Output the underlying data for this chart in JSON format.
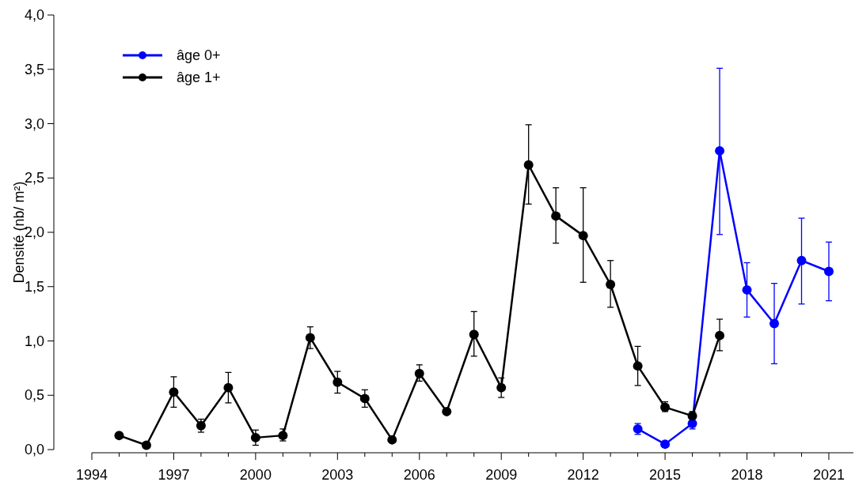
{
  "chart_data": {
    "type": "line",
    "ylabel": "Densité (nb/ m²)",
    "xlim": [
      1994,
      2021.9
    ],
    "ylim": [
      0,
      4
    ],
    "xticks": [
      1994,
      {
        "value": 1995,
        "label": null
      },
      {
        "value": 1996,
        "label": null
      },
      1997,
      {
        "value": 1998,
        "label": null
      },
      {
        "value": 1999,
        "label": null
      },
      2000,
      {
        "value": 2001,
        "label": null
      },
      {
        "value": 2002,
        "label": null
      },
      2003,
      {
        "value": 2004,
        "label": null
      },
      {
        "value": 2005,
        "label": null
      },
      2006,
      {
        "value": 2007,
        "label": null
      },
      {
        "value": 2008,
        "label": null
      },
      2009,
      {
        "value": 2010,
        "label": null
      },
      {
        "value": 2011,
        "label": null
      },
      2012,
      {
        "value": 2013,
        "label": null
      },
      {
        "value": 2014,
        "label": null
      },
      2015,
      {
        "value": 2016,
        "label": null
      },
      {
        "value": 2017,
        "label": null
      },
      2018,
      {
        "value": 2019,
        "label": null
      },
      {
        "value": 2020,
        "label": null
      },
      2021
    ],
    "yticks": [
      {
        "value": 0,
        "label": "0,0"
      },
      {
        "value": 0.5,
        "label": "0,5"
      },
      {
        "value": 1,
        "label": "1,0"
      },
      {
        "value": 1.5,
        "label": "1,5"
      },
      {
        "value": 2,
        "label": "2,0"
      },
      {
        "value": 2.5,
        "label": "2,5"
      },
      {
        "value": 3,
        "label": "3,0"
      },
      {
        "value": 3.5,
        "label": "3,5"
      },
      {
        "value": 4,
        "label": "4,0"
      }
    ],
    "grid": false,
    "legend": "top left",
    "marker": "circle",
    "line_style": "solid",
    "series": [
      {
        "name": "âge 0+",
        "color": "#0000ff",
        "x": [
          2014,
          2015,
          2016,
          2017,
          2018,
          2019,
          2020,
          2021
        ],
        "values": [
          0.19,
          0.05,
          0.24,
          2.75,
          1.47,
          1.16,
          1.74,
          1.64
        ],
        "errors": [
          [
            0.14,
            0.24
          ],
          null,
          [
            0.19,
            0.29
          ],
          [
            1.98,
            3.51
          ],
          [
            1.22,
            1.72
          ],
          [
            0.79,
            1.53
          ],
          [
            1.34,
            2.13
          ],
          [
            1.37,
            1.91
          ]
        ]
      },
      {
        "name": "âge 1+",
        "color": "#000000",
        "x": [
          1995,
          1996,
          1997,
          1998,
          1999,
          2000,
          2001,
          2002,
          2003,
          2004,
          2005,
          2006,
          2007,
          2008,
          2009,
          2010,
          2011,
          2012,
          2013,
          2014,
          2015,
          2016,
          2017
        ],
        "values": [
          0.13,
          0.04,
          0.53,
          0.22,
          0.57,
          0.11,
          0.13,
          1.03,
          0.62,
          0.47,
          0.09,
          0.7,
          0.35,
          1.06,
          0.57,
          2.62,
          2.15,
          1.97,
          1.52,
          0.77,
          0.39,
          0.31,
          1.05
        ],
        "errors": [
          null,
          null,
          [
            0.39,
            0.67
          ],
          [
            0.16,
            0.28
          ],
          [
            0.43,
            0.71
          ],
          [
            0.04,
            0.18
          ],
          [
            0.08,
            0.19
          ],
          [
            0.93,
            1.13
          ],
          [
            0.52,
            0.72
          ],
          [
            0.39,
            0.55
          ],
          null,
          [
            0.63,
            0.78
          ],
          null,
          [
            0.86,
            1.27
          ],
          [
            0.48,
            0.66
          ],
          [
            2.26,
            2.99
          ],
          [
            1.9,
            2.41
          ],
          [
            1.54,
            2.41
          ],
          [
            1.31,
            1.74
          ],
          [
            0.59,
            0.95
          ],
          [
            0.35,
            0.44
          ],
          [
            0.28,
            0.35
          ],
          [
            0.91,
            1.2
          ]
        ]
      }
    ]
  }
}
